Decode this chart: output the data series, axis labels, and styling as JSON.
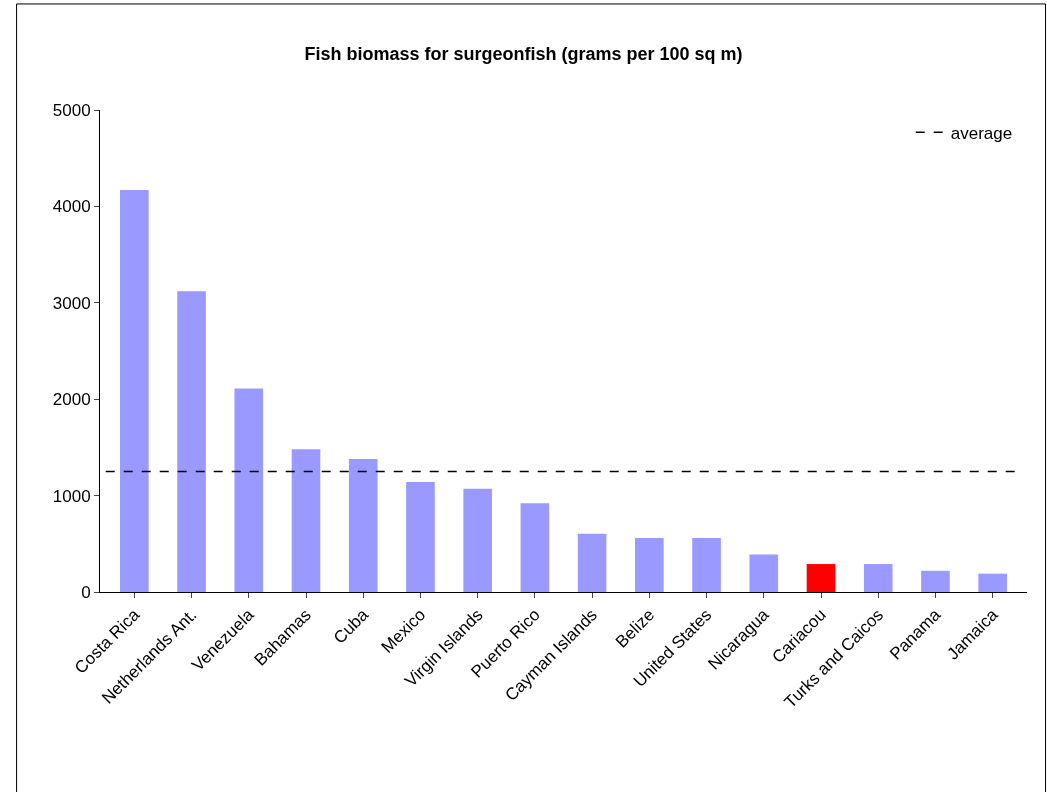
{
  "chart_data": {
    "type": "bar",
    "title": "Fish biomass for surgeonfish (grams per 100 sq m)",
    "categories": [
      "Costa Rica",
      "Netherlands Ant.",
      "Venezuela",
      "Bahamas",
      "Cuba",
      "Mexico",
      "Virgin Islands",
      "Puerto Rico",
      "Cayman Islands",
      "Belize",
      "United States",
      "Nicaragua",
      "Cariacou",
      "Turks and Caicos",
      "Panama",
      "Jamaica"
    ],
    "values": [
      4170,
      3120,
      2110,
      1480,
      1380,
      1140,
      1070,
      920,
      605,
      560,
      560,
      390,
      290,
      290,
      220,
      190
    ],
    "colors": [
      "#9999ff",
      "#9999ff",
      "#9999ff",
      "#9999ff",
      "#9999ff",
      "#9999ff",
      "#9999ff",
      "#9999ff",
      "#9999ff",
      "#9999ff",
      "#9999ff",
      "#9999ff",
      "#ff0000",
      "#9999ff",
      "#9999ff",
      "#9999ff"
    ],
    "ylim": [
      0,
      5000
    ],
    "yticks": [
      0,
      1000,
      2000,
      3000,
      4000,
      5000
    ],
    "grid": false,
    "legend": "top right",
    "ref_lines": [
      {
        "axis": "y",
        "value": 1250,
        "label": "average",
        "color": "#000000",
        "line_style": "dashed"
      }
    ]
  }
}
